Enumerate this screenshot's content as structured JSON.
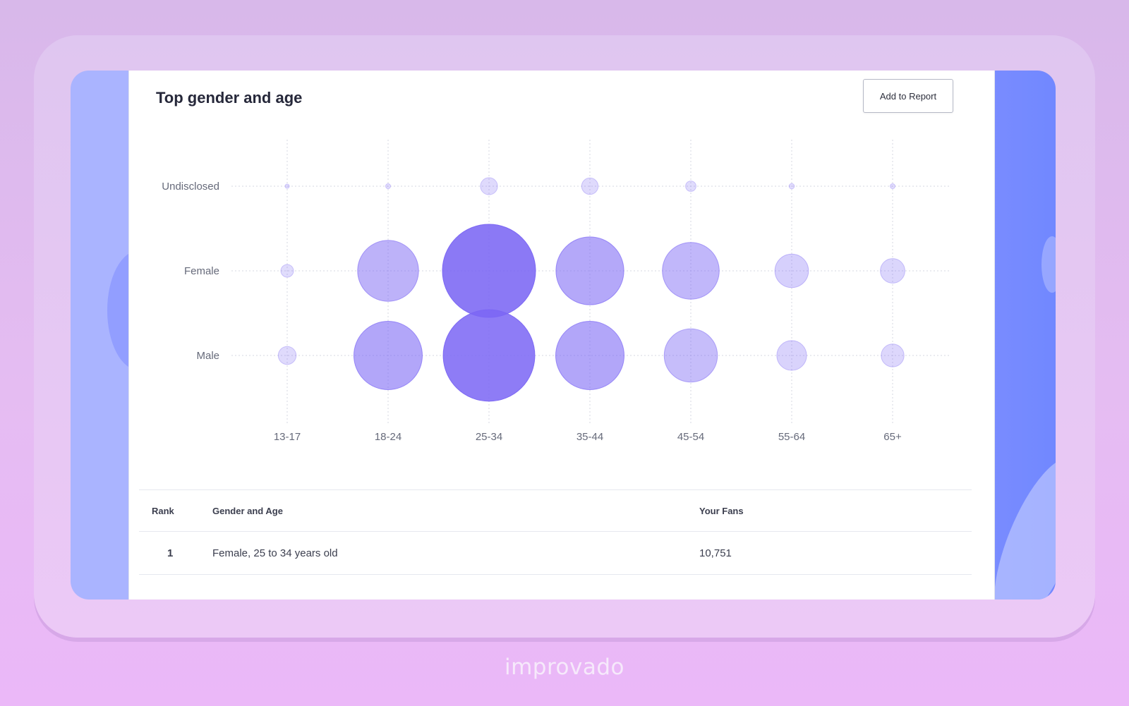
{
  "panel": {
    "title": "Top gender and age",
    "add_button_label": "Add to Report"
  },
  "chart_data": {
    "type": "bubble",
    "title": "",
    "x_categories": [
      "13-17",
      "18-24",
      "25-34",
      "35-44",
      "45-54",
      "55-64",
      "65+"
    ],
    "y_categories": [
      "Undisclosed",
      "Female",
      "Male"
    ],
    "bubble_color": "#7b66f4",
    "series": [
      {
        "name": "Undisclosed",
        "values": [
          0,
          30,
          360,
          340,
          135,
          35,
          30
        ]
      },
      {
        "name": "Female",
        "values": [
          200,
          4600,
          10751,
          5700,
          4000,
          1400,
          750
        ]
      },
      {
        "name": "Male",
        "values": [
          400,
          5800,
          10400,
          5800,
          3500,
          1100,
          650
        ]
      }
    ],
    "grid": true
  },
  "table": {
    "columns": [
      "Rank",
      "Gender and Age",
      "Your Fans"
    ],
    "rows": [
      {
        "rank": "1",
        "gender_age": "Female, 25 to 34 years old",
        "fans": "10,751"
      }
    ]
  },
  "brand": {
    "logo_text": "improvado"
  }
}
